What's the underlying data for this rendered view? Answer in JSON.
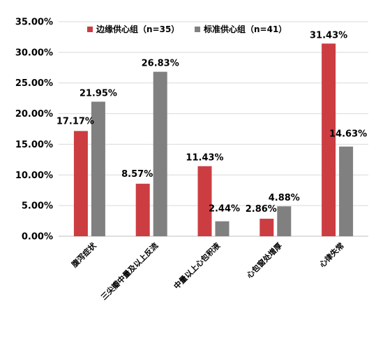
{
  "chart_data": {
    "type": "bar",
    "categories": [
      "腹泻症状",
      "三尖瓣中量及以上反流",
      "中量以上心包积液",
      "心包窗处增厚",
      "心律失常"
    ],
    "series": [
      {
        "name": "边缘供心组（n=35）",
        "color": "#cc3d42",
        "values": [
          17.17,
          8.57,
          11.43,
          2.86,
          31.43
        ],
        "labels": [
          "17.17%",
          "8.57%",
          "11.43%",
          "2.86%",
          "31.43%"
        ]
      },
      {
        "name": "标准供心组（n=41）",
        "color": "#808080",
        "values": [
          21.95,
          26.83,
          2.44,
          4.88,
          14.63
        ],
        "labels": [
          "21.95%",
          "26.83%",
          "2.44%",
          "4.88%",
          "14.63%"
        ]
      }
    ],
    "ylim": [
      0,
      35
    ],
    "yticks": [
      0,
      5,
      10,
      15,
      20,
      25,
      30,
      35
    ],
    "ytick_labels": [
      "0.00%",
      "5.00%",
      "10.00%",
      "15.00%",
      "20.00%",
      "25.00%",
      "30.00%",
      "35.00%"
    ],
    "grid": true,
    "legend_position": "top-center",
    "title": "",
    "xlabel": "",
    "ylabel": ""
  }
}
